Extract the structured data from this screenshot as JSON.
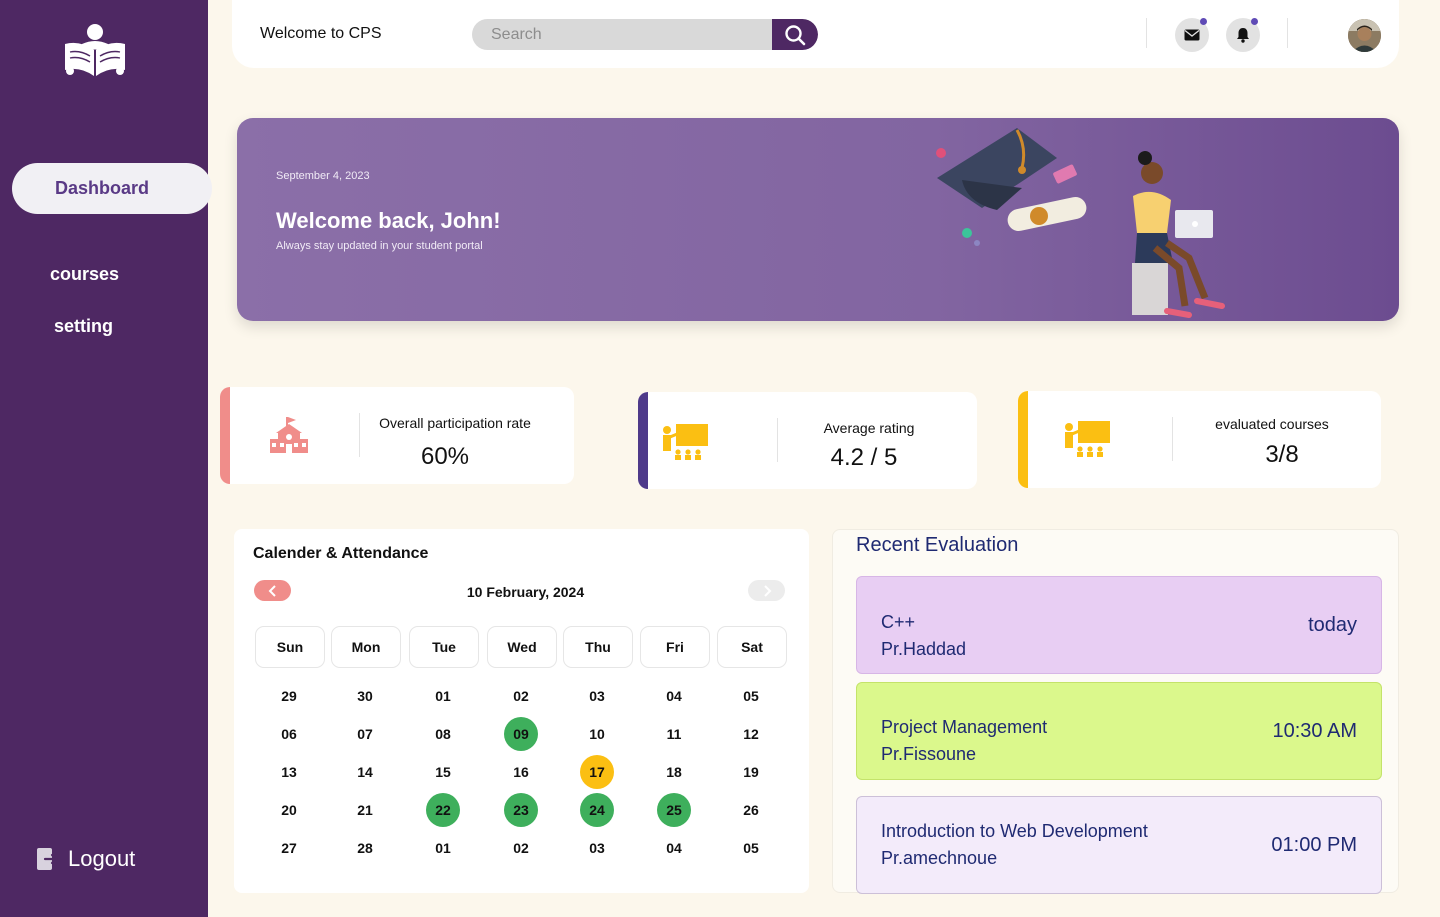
{
  "sidebar": {
    "nav": [
      {
        "label": "Dashboard",
        "active": true
      },
      {
        "label": "courses",
        "active": false
      },
      {
        "label": "setting",
        "active": false
      }
    ],
    "logout_label": "Logout"
  },
  "header": {
    "welcome": "Welcome to CPS",
    "search_placeholder": "Search",
    "icons": [
      "mail-icon",
      "bell-icon"
    ]
  },
  "banner": {
    "date": "September 4,  2023",
    "title": "Welcome back, John!",
    "subtitle": "Always stay updated in your student portal"
  },
  "stats": [
    {
      "label": "Overall participation rate",
      "value": "60%",
      "color": "#f08d8a",
      "icon": "school-icon"
    },
    {
      "label": "Average rating",
      "value": "4.2 / 5",
      "color": "#4e3a8a",
      "icon": "teacher-class-icon"
    },
    {
      "label": "evaluated courses",
      "value": "3/8",
      "color": "#fbbf12",
      "icon": "teacher-class-icon"
    }
  ],
  "calendar": {
    "title": "Calender & Attendance",
    "month_label": "10 February, 2024",
    "weekdays": [
      "Sun",
      "Mon",
      "Tue",
      "Wed",
      "Thu",
      "Fri",
      "Sat"
    ],
    "weeks": [
      [
        "29",
        "30",
        "01",
        "02",
        "03",
        "04",
        "05"
      ],
      [
        "06",
        "07",
        "08",
        "09",
        "10",
        "11",
        "12"
      ],
      [
        "13",
        "14",
        "15",
        "16",
        "17",
        "18",
        "19"
      ],
      [
        "20",
        "21",
        "22",
        "23",
        "24",
        "25",
        "26"
      ],
      [
        "27",
        "28",
        "01",
        "02",
        "03",
        "04",
        "05"
      ]
    ],
    "present_days": [
      "09",
      "22",
      "23",
      "24",
      "25"
    ],
    "today": "17",
    "colors": {
      "present": "#3eaf5c",
      "today": "#fbbf12"
    }
  },
  "recent": {
    "title": "Recent Evaluation",
    "items": [
      {
        "course": "C++",
        "professor": "Pr.Haddad",
        "time": "today",
        "color": "#e8cef3"
      },
      {
        "course": "Project Management",
        "professor": "Pr.Fissoune",
        "time": "10:30 AM",
        "color": "#dbf88c"
      },
      {
        "course": "Introduction to Web Development",
        "professor": "Pr.amechnoue",
        "time": "01:00 PM",
        "color": "#f3ebfa"
      }
    ]
  },
  "colors": {
    "sidebar": "#4e2863",
    "accent": "#5a3a86",
    "background": "#fcf7ec"
  }
}
